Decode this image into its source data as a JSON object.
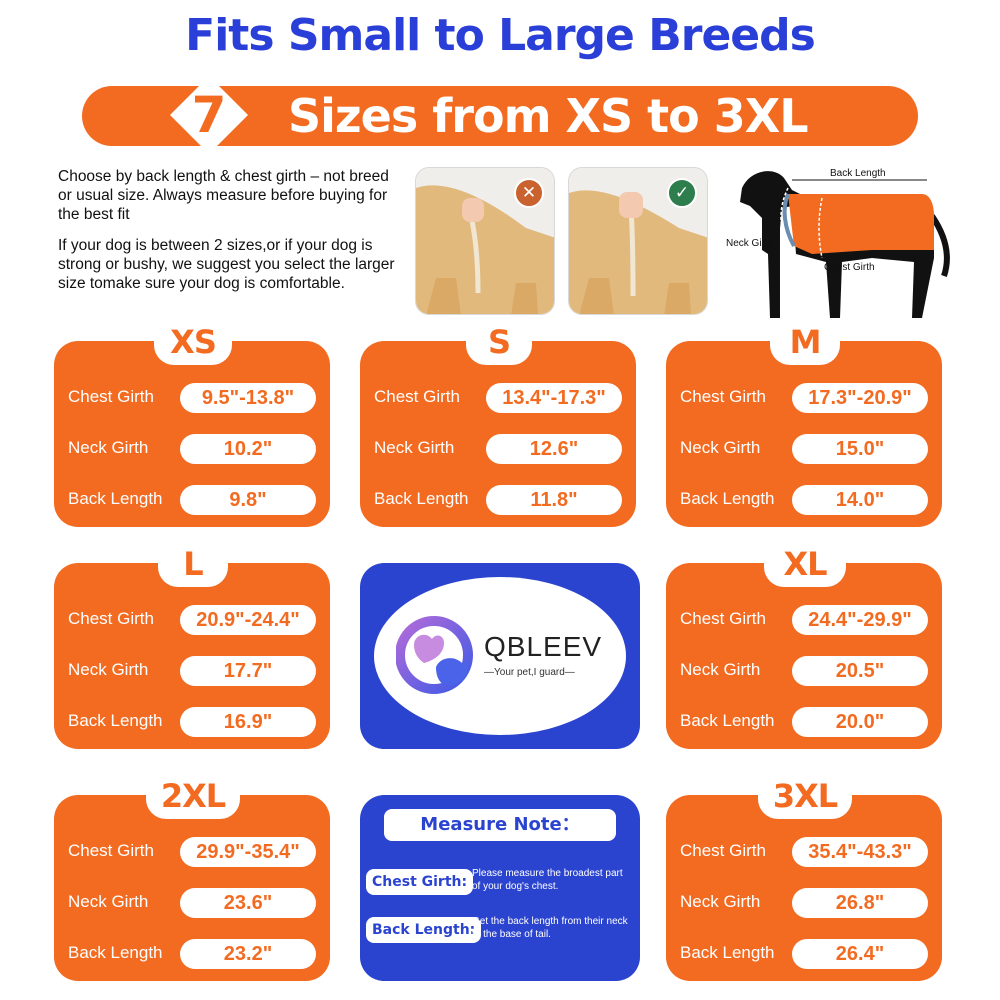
{
  "header": {
    "title": "Fits Small to Large Breeds",
    "banner_number": "7",
    "banner_text": "Sizes from XS to 3XL"
  },
  "intro": {
    "paragraph1": "Choose by back length & chest girth – not breed or usual size. Always measure before buying for the best fit",
    "paragraph2": "If your dog is between 2 sizes,or if your dog is strong or bushy, we suggest you select the larger size tomake sure your dog is comfortable."
  },
  "diagram": {
    "back_length": "Back Length",
    "neck_girth": "Neck Girth",
    "chest_girth": "Chest Girth",
    "wrong_icon": "cross-icon",
    "right_icon": "check-icon"
  },
  "row_labels": {
    "chest": "Chest Girth",
    "neck": "Neck Girth",
    "back": "Back Length"
  },
  "sizes": [
    {
      "size": "XS",
      "chest": "9.5\"-13.8\"",
      "neck": "10.2\"",
      "back": "9.8\""
    },
    {
      "size": "S",
      "chest": "13.4\"-17.3\"",
      "neck": "12.6\"",
      "back": "11.8\""
    },
    {
      "size": "M",
      "chest": "17.3\"-20.9\"",
      "neck": "15.0\"",
      "back": "14.0\""
    },
    {
      "size": "L",
      "chest": "20.9\"-24.4\"",
      "neck": "17.7\"",
      "back": "16.9\""
    },
    {
      "size": "XL",
      "chest": "24.4\"-29.9\"",
      "neck": "20.5\"",
      "back": "20.0\""
    },
    {
      "size": "2XL",
      "chest": "29.9\"-35.4\"",
      "neck": "23.6\"",
      "back": "23.2\""
    },
    {
      "size": "3XL",
      "chest": "35.4\"-43.3\"",
      "neck": "26.8\"",
      "back": "26.4\""
    }
  ],
  "brand": {
    "name": "QBLEEV",
    "tagline": "—Your pet,I guard—"
  },
  "measure_note": {
    "title": "Measure Note：",
    "chest_label": "Chest Girth:",
    "chest_text": "Please measure the broadest part of your dog's chest.",
    "back_label": "Back Length:",
    "back_text": "Get the back length from their neck to the base of tail."
  },
  "colors": {
    "orange": "#f26b21",
    "blue": "#2b44d0",
    "title_blue": "#2a3fd8"
  }
}
